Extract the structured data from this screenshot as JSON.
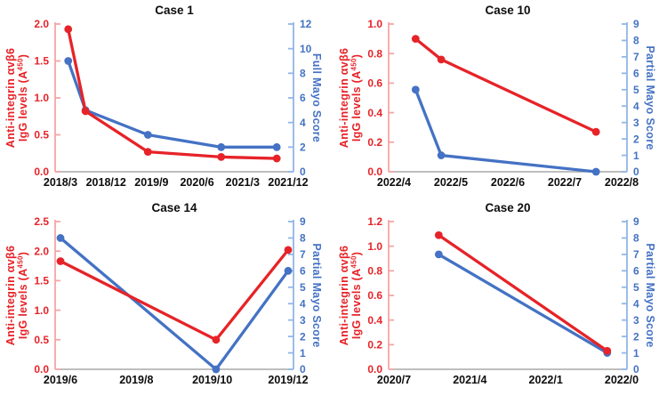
{
  "figure": {
    "background": "#ffffff"
  },
  "palette": {
    "red": "#e62328",
    "red_light": "#f5a5a5",
    "blue": "#4472c4",
    "blue_light": "#92b6e6",
    "axis_gray": "#a8a8a8",
    "text_black": "#0d0d0d"
  },
  "chart_data": [
    {
      "type": "line",
      "title": "Case 1",
      "x_tick_labels": [
        "2018/3",
        "2018/12",
        "2019/9",
        "2020/6",
        "2021/3",
        "2021/12"
      ],
      "left_axis": {
        "title_line1": "Anti-integrin αvβ6",
        "title_line2_pre": "IgG levels (A",
        "title_line2_sup": "450",
        "title_line2_post": ")",
        "tick_labels": [
          "0.0",
          "0.5",
          "1.0",
          "1.5",
          "2.0"
        ],
        "min": 0,
        "max": 2.0,
        "color": "#e62328",
        "spine_color": "#f5a5a5"
      },
      "right_axis": {
        "title": "Full Mayo Score",
        "tick_labels": [
          "0",
          "2",
          "4",
          "6",
          "8",
          "10",
          "12"
        ],
        "min": 0,
        "max": 12,
        "color": "#4472c4",
        "spine_color": "#92b6e6"
      },
      "series": [
        {
          "name": "full-mayo-score",
          "axis": "right",
          "color": "#4472c4",
          "x_tick_index": [
            0.17,
            0.55,
            1.92,
            3.53,
            4.75
          ],
          "values": [
            9,
            5,
            3,
            2,
            2
          ]
        },
        {
          "name": "anti-integrin-igg",
          "axis": "left",
          "color": "#e62328",
          "x_tick_index": [
            0.17,
            0.55,
            1.92,
            3.53,
            4.75
          ],
          "values": [
            1.93,
            0.82,
            0.27,
            0.2,
            0.18
          ]
        }
      ]
    },
    {
      "type": "line",
      "title": "Case 10",
      "x_tick_labels": [
        "2022/4",
        "2022/5",
        "2022/6",
        "2022/7",
        "2022/8"
      ],
      "left_axis": {
        "title_line1": "Anti-integrin αvβ6",
        "title_line2_pre": "IgG levels (A",
        "title_line2_sup": "450",
        "title_line2_post": ")",
        "tick_labels": [
          "0.0",
          "0.2",
          "0.4",
          "0.6",
          "0.8",
          "1.0"
        ],
        "min": 0,
        "max": 1.0,
        "color": "#e62328",
        "spine_color": "#f5a5a5"
      },
      "right_axis": {
        "title": "Partial Mayo Score",
        "tick_labels": [
          "0",
          "1",
          "2",
          "3",
          "4",
          "5",
          "6",
          "7",
          "8",
          "9"
        ],
        "min": 0,
        "max": 9,
        "color": "#4472c4",
        "spine_color": "#92b6e6"
      },
      "series": [
        {
          "name": "partial-mayo-score",
          "axis": "right",
          "color": "#4472c4",
          "x_tick_index": [
            0.38,
            0.83,
            3.55
          ],
          "values": [
            5,
            1,
            0
          ]
        },
        {
          "name": "anti-integrin-igg",
          "axis": "left",
          "color": "#e62328",
          "x_tick_index": [
            0.38,
            0.83,
            3.55
          ],
          "values": [
            0.9,
            0.76,
            0.27
          ]
        }
      ]
    },
    {
      "type": "line",
      "title": "Case 14",
      "x_tick_labels": [
        "2019/6",
        "2019/8",
        "2019/10",
        "2019/12"
      ],
      "left_axis": {
        "title_line1": "Anti-integrin αvβ6",
        "title_line2_pre": "IgG levels (A",
        "title_line2_sup": "450",
        "title_line2_post": ")",
        "tick_labels": [
          "0.0",
          "0.5",
          "1.0",
          "1.5",
          "2.0",
          "2.5"
        ],
        "min": 0,
        "max": 2.5,
        "color": "#e62328",
        "spine_color": "#f5a5a5"
      },
      "right_axis": {
        "title": "Partial Mayo Score",
        "tick_labels": [
          "0",
          "1",
          "2",
          "3",
          "4",
          "5",
          "6",
          "7",
          "8",
          "9"
        ],
        "min": 0,
        "max": 9,
        "color": "#4472c4",
        "spine_color": "#92b6e6"
      },
      "series": [
        {
          "name": "partial-mayo-score",
          "axis": "right",
          "color": "#4472c4",
          "x_tick_index": [
            0.0,
            2.05,
            3.0
          ],
          "values": [
            8,
            0,
            6
          ]
        },
        {
          "name": "anti-integrin-igg",
          "axis": "left",
          "color": "#e62328",
          "x_tick_index": [
            0.0,
            2.05,
            3.0
          ],
          "values": [
            1.83,
            0.5,
            2.02
          ]
        }
      ]
    },
    {
      "type": "line",
      "title": "Case 20",
      "x_tick_labels": [
        "2020/7",
        "2021/4",
        "2022/1",
        "2022/0"
      ],
      "left_axis": {
        "title_line1": "Anti-integrin αvβ6",
        "title_line2_pre": "IgG levels (A",
        "title_line2_sup": "450",
        "title_line2_post": ")",
        "tick_labels": [
          "0.0",
          "0.2",
          "0.4",
          "0.6",
          "0.8",
          "1.0",
          "1.2"
        ],
        "min": 0,
        "max": 1.2,
        "color": "#e62328",
        "spine_color": "#f5a5a5"
      },
      "right_axis": {
        "title": "Partial Mayo Score",
        "tick_labels": [
          "0",
          "1",
          "2",
          "3",
          "4",
          "5",
          "6",
          "7",
          "8",
          "9"
        ],
        "min": 0,
        "max": 9,
        "color": "#4472c4",
        "spine_color": "#92b6e6"
      },
      "series": [
        {
          "name": "partial-mayo-score",
          "axis": "right",
          "color": "#4472c4",
          "x_tick_index": [
            0.59,
            2.81
          ],
          "values": [
            7,
            1
          ]
        },
        {
          "name": "anti-integrin-igg",
          "axis": "left",
          "color": "#e62328",
          "x_tick_index": [
            0.59,
            2.81
          ],
          "values": [
            1.09,
            0.15
          ]
        }
      ]
    }
  ]
}
